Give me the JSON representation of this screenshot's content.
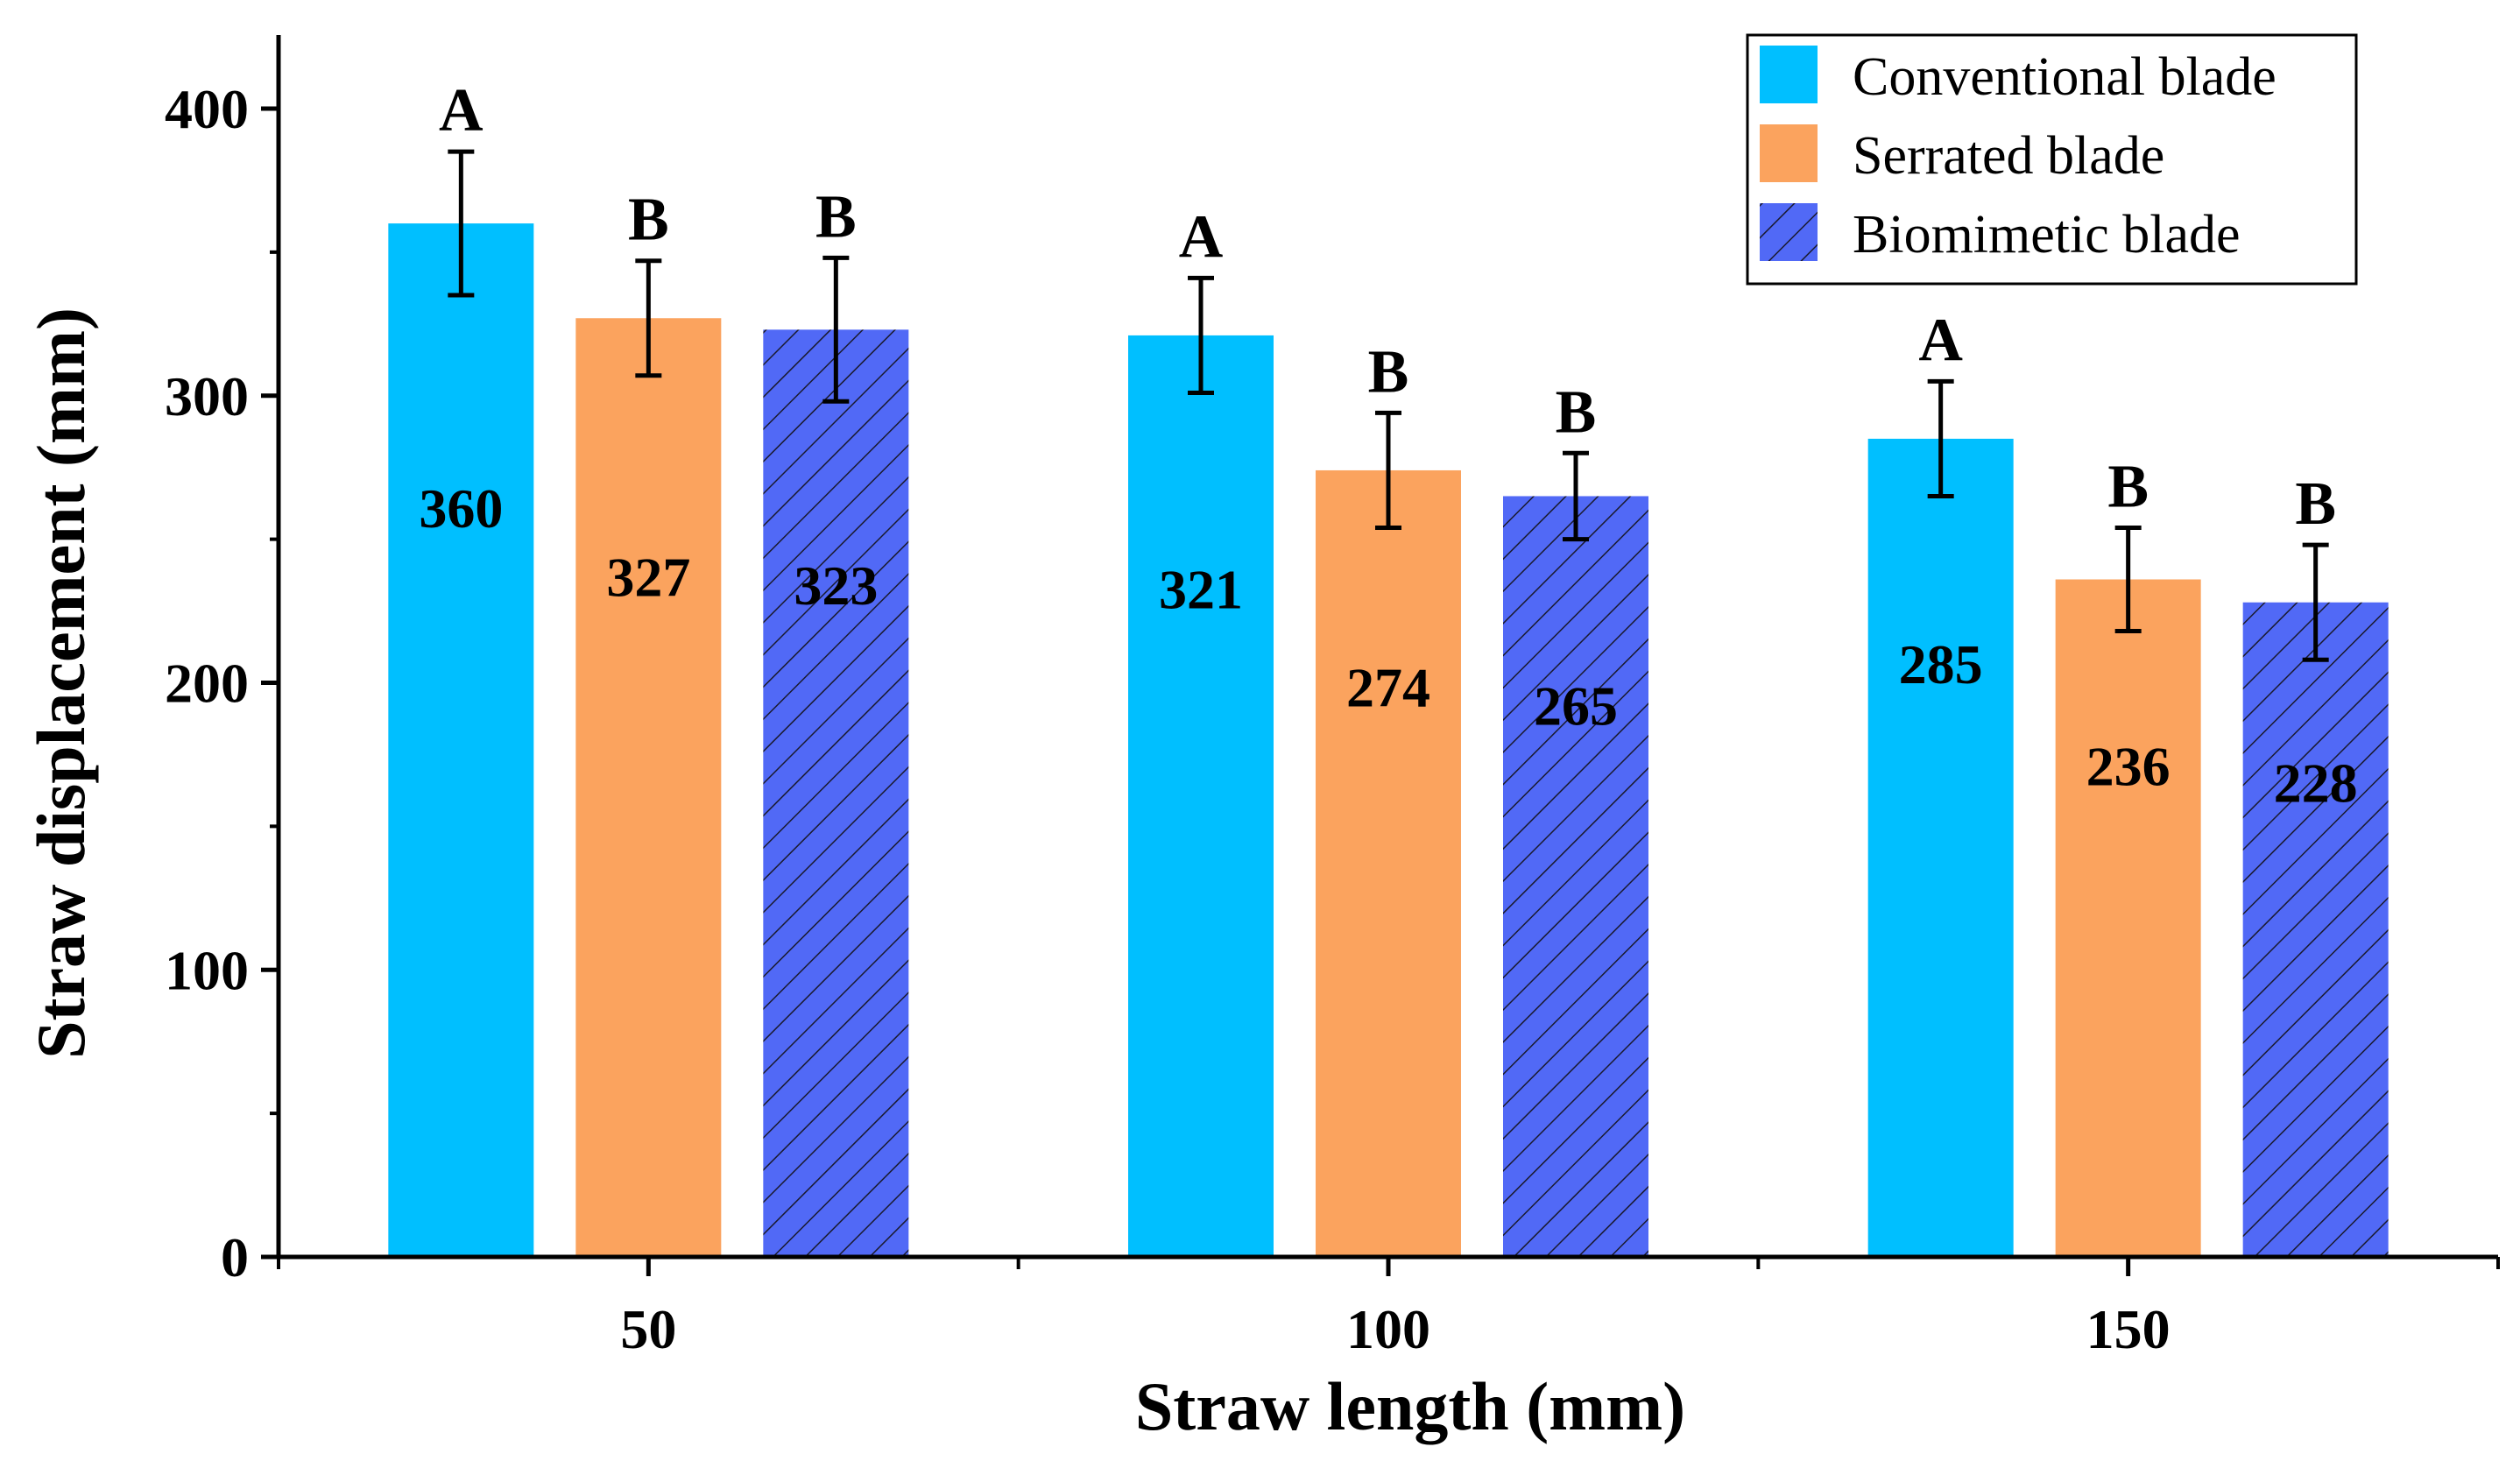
{
  "chart_data": {
    "type": "bar",
    "title": "",
    "xlabel": "Straw length (mm)",
    "ylabel": "Straw displacement (mm)",
    "categories": [
      "50",
      "100",
      "150"
    ],
    "ylim": [
      0,
      420
    ],
    "yticks": [
      0,
      100,
      200,
      300,
      400
    ],
    "grid": false,
    "legend_position": "top-right",
    "series": [
      {
        "name": "Conventional blade",
        "color": "#00BFFF",
        "pattern": "solid",
        "values": [
          360,
          321,
          285
        ],
        "errors": [
          25,
          20,
          20
        ],
        "letters": [
          "A",
          "A",
          "A"
        ],
        "labels": [
          "360",
          "321",
          "285"
        ]
      },
      {
        "name": "Serrated blade",
        "color": "#FBA35E",
        "pattern": "solid",
        "values": [
          327,
          274,
          236
        ],
        "errors": [
          20,
          20,
          18
        ],
        "letters": [
          "B",
          "B",
          "B"
        ],
        "labels": [
          "327",
          "274",
          "236"
        ]
      },
      {
        "name": "Biomimetic blade",
        "color": "#5169F6",
        "pattern": "hatched",
        "values": [
          323,
          265,
          228
        ],
        "errors": [
          25,
          15,
          20
        ],
        "letters": [
          "B",
          "B",
          "B"
        ],
        "labels": [
          "323",
          "265",
          "228"
        ]
      }
    ]
  }
}
